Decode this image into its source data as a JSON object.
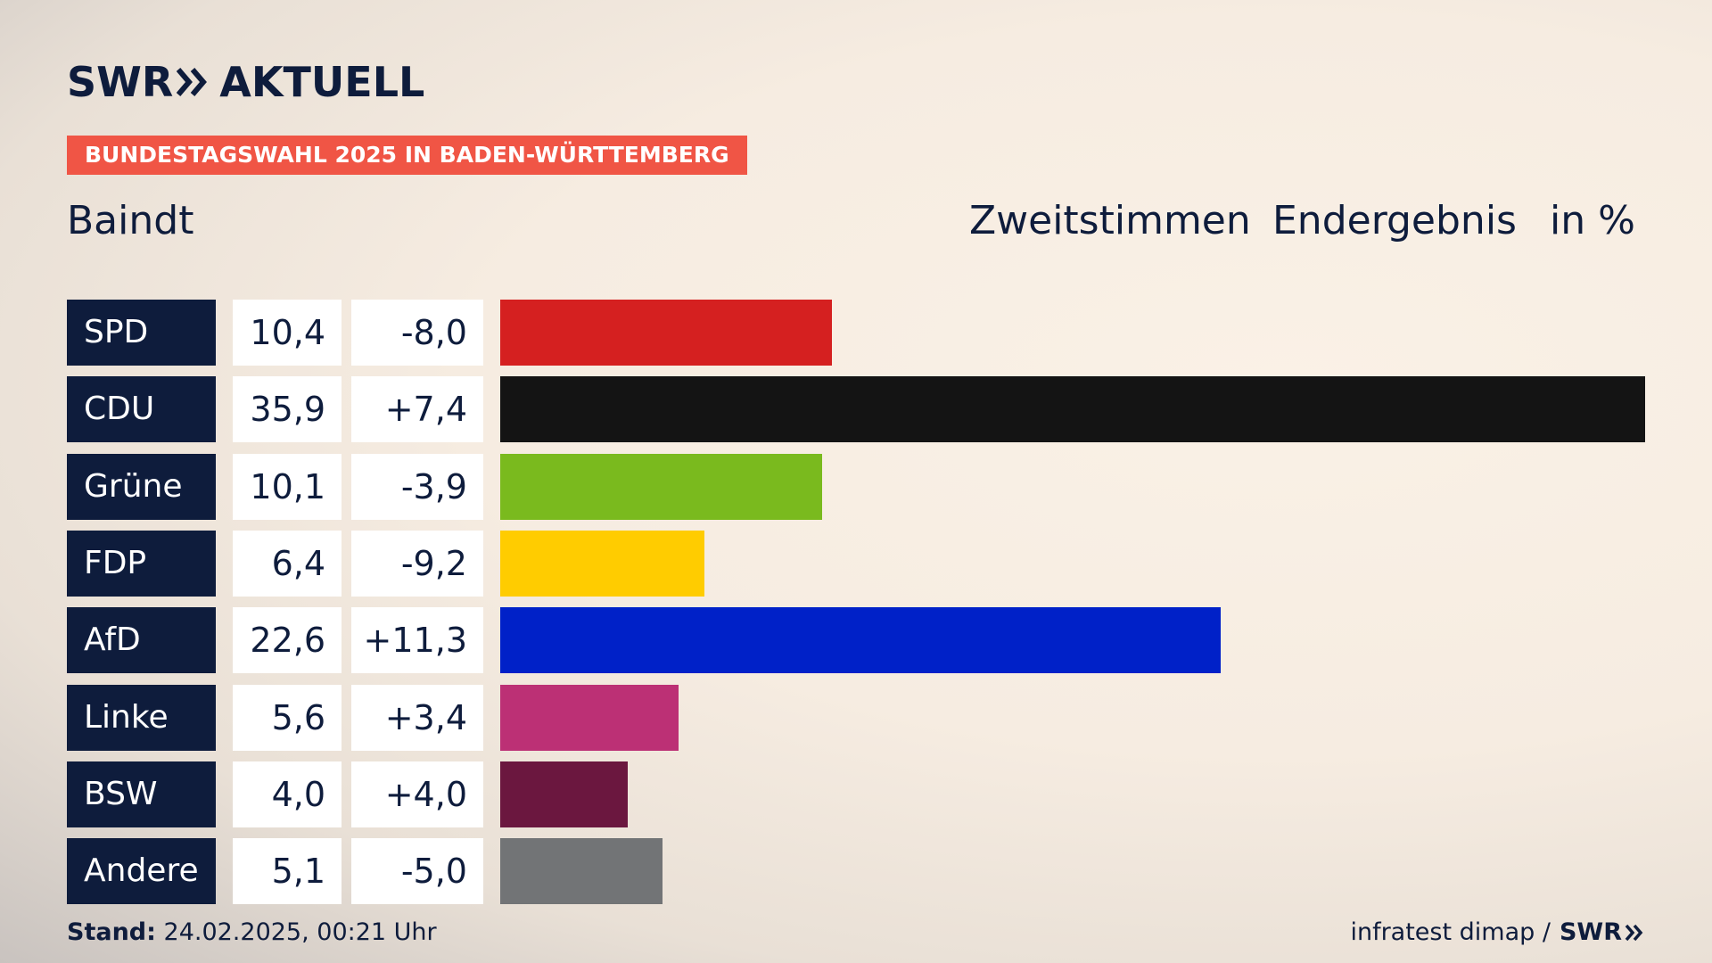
{
  "header": {
    "logo_left": "SWR",
    "logo_right": "AKTUELL",
    "tag": "BUNDESTAGSWAHL 2025 IN BADEN-WÜRTTEMBERG",
    "place": "Baindt",
    "col1": "Zweitstimmen",
    "col2": "Endergebnis",
    "col3": "in %"
  },
  "footer": {
    "stand_label": "Stand:",
    "stand_value": "24.02.2025, 00:21 Uhr",
    "source": "infratest dimap /",
    "source_logo": "SWR"
  },
  "colors": {
    "navy": "#0e1c3c",
    "tag": "#f05545"
  },
  "chart_data": {
    "type": "bar",
    "orientation": "horizontal",
    "categories": [
      "SPD",
      "CDU",
      "Grüne",
      "FDP",
      "AfD",
      "Linke",
      "BSW",
      "Andere"
    ],
    "values": [
      10.4,
      35.9,
      10.1,
      6.4,
      22.6,
      5.6,
      4.0,
      5.1
    ],
    "values_label": [
      "10,4",
      "35,9",
      "10,1",
      "6,4",
      "22,6",
      "5,6",
      "4,0",
      "5,1"
    ],
    "changes_label": [
      "-8,0",
      "+7,4",
      "-3,9",
      "-9,2",
      "+11,3",
      "+3,4",
      "+4,0",
      "-5,0"
    ],
    "changes": [
      -8.0,
      7.4,
      -3.9,
      -9.2,
      11.3,
      3.4,
      4.0,
      -5.0
    ],
    "colors": [
      "#d52020",
      "#141414",
      "#7aba1e",
      "#ffcc00",
      "#0021c8",
      "#bc3075",
      "#6b173f",
      "#727476"
    ],
    "title": "Zweitstimmen Endergebnis",
    "ylabel": "in %",
    "xlim": [
      0,
      35.9
    ]
  }
}
